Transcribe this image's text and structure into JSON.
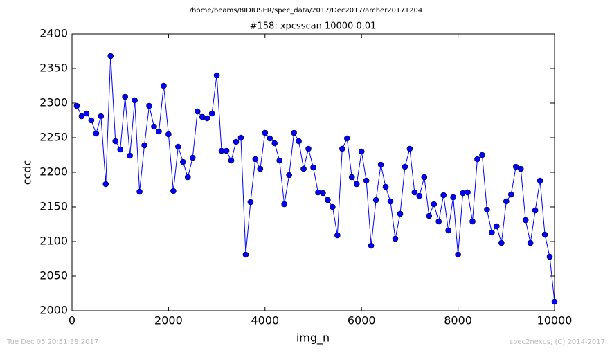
{
  "chart_data": {
    "type": "line",
    "suptitle": "/home/beams/8IDIUSER/spec_data/2017/Dec2017/archer20171204",
    "title": "#158: xpcsscan 10000 0.01",
    "xlabel": "img_n",
    "ylabel": "ccdc",
    "footer_left": "Tue Dec 05 20:51:38 2017",
    "footer_right": "spec2nexus, (C) 2014-2017",
    "x": [
      100,
      200,
      300,
      400,
      500,
      600,
      700,
      800,
      900,
      1000,
      1100,
      1200,
      1300,
      1400,
      1500,
      1600,
      1700,
      1800,
      1900,
      2000,
      2100,
      2200,
      2300,
      2400,
      2500,
      2600,
      2700,
      2800,
      2900,
      3000,
      3100,
      3200,
      3300,
      3400,
      3500,
      3600,
      3700,
      3800,
      3900,
      4000,
      4100,
      4200,
      4300,
      4400,
      4500,
      4600,
      4700,
      4800,
      4900,
      5000,
      5100,
      5200,
      5300,
      5400,
      5500,
      5600,
      5700,
      5800,
      5900,
      6000,
      6100,
      6200,
      6300,
      6400,
      6500,
      6600,
      6700,
      6800,
      6900,
      7000,
      7100,
      7200,
      7300,
      7400,
      7500,
      7600,
      7700,
      7800,
      7900,
      8000,
      8100,
      8200,
      8300,
      8400,
      8500,
      8600,
      8700,
      8800,
      8900,
      9000,
      9100,
      9200,
      9300,
      9400,
      9500,
      9600,
      9700,
      9800,
      9900,
      10000
    ],
    "series": [
      {
        "name": "ccdc",
        "color": "#0000ff",
        "values": [
          2296,
          2281,
          2285,
          2275,
          2256,
          2281,
          2183,
          2368,
          2245,
          2233,
          2309,
          2224,
          2304,
          2172,
          2239,
          2296,
          2266,
          2259,
          2325,
          2255,
          2173,
          2237,
          2215,
          2193,
          2221,
          2288,
          2280,
          2278,
          2285,
          2340,
          2231,
          2231,
          2217,
          2244,
          2250,
          2081,
          2157,
          2219,
          2205,
          2257,
          2249,
          2242,
          2217,
          2154,
          2196,
          2257,
          2245,
          2205,
          2234,
          2207,
          2171,
          2170,
          2160,
          2150,
          2109,
          2234,
          2249,
          2193,
          2183,
          2230,
          2188,
          2094,
          2160,
          2211,
          2179,
          2158,
          2104,
          2140,
          2208,
          2234,
          2171,
          2166,
          2193,
          2137,
          2154,
          2129,
          2167,
          2116,
          2164,
          2081,
          2170,
          2171,
          2129,
          2219,
          2225,
          2146,
          2113,
          2122,
          2098,
          2158,
          2168,
          2208,
          2205,
          2131,
          2098,
          2145,
          2188,
          2110,
          2078,
          2013
        ]
      }
    ],
    "xlim": [
      0,
      10000
    ],
    "xticks": [
      0,
      2000,
      4000,
      6000,
      8000,
      10000
    ],
    "ylim": [
      2000,
      2400
    ],
    "yticks": [
      2000,
      2050,
      2100,
      2150,
      2200,
      2250,
      2300,
      2350,
      2400
    ]
  }
}
